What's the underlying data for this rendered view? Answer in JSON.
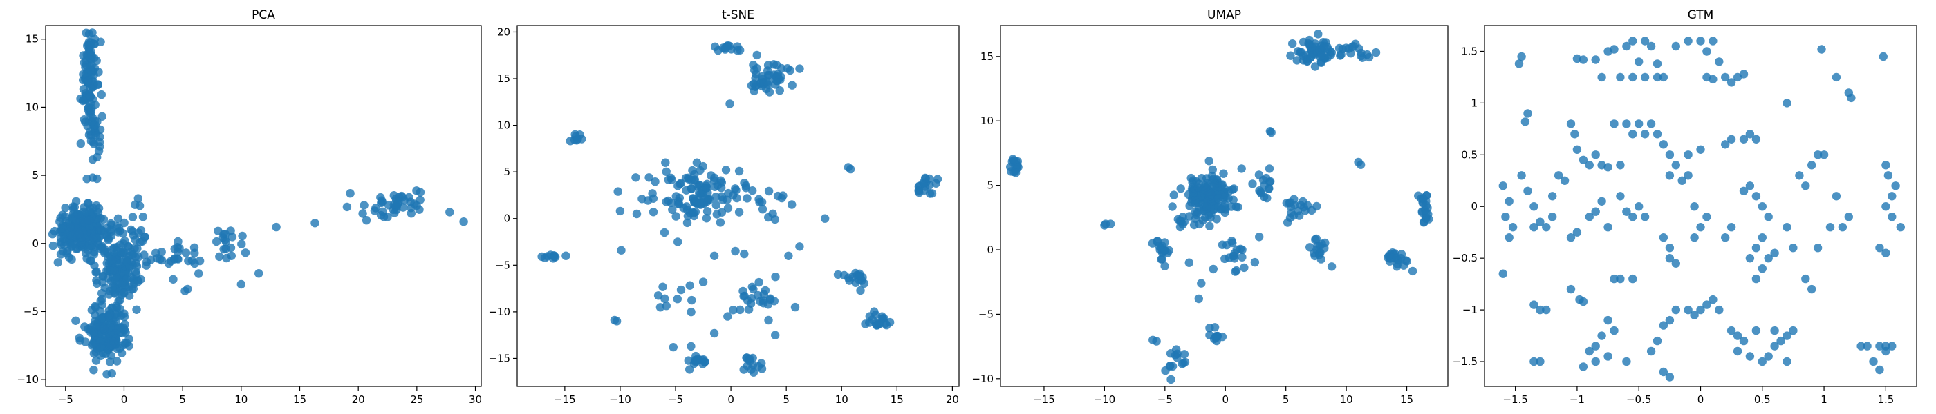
{
  "chart_data": [
    {
      "type": "scatter",
      "title": "PCA",
      "xlim": [
        -6.7,
        30.5
      ],
      "ylim": [
        -10.5,
        16.0
      ],
      "xticks": [
        -5,
        0,
        5,
        10,
        15,
        20,
        25,
        30
      ],
      "yticks": [
        -10,
        -5,
        0,
        5,
        10,
        15
      ],
      "xlabel": "",
      "ylabel": "",
      "grid": false,
      "marker_color": "#1f77b4",
      "clusters": [
        {
          "x": -3.0,
          "y": 12.3,
          "sx": 0.35,
          "sy": 1.8,
          "n": 90
        },
        {
          "x": -2.4,
          "y": 8.2,
          "sx": 0.3,
          "sy": 1.7,
          "n": 35
        },
        {
          "x": -3.5,
          "y": 0.9,
          "sx": 1.1,
          "sy": 0.8,
          "n": 260
        },
        {
          "x": -0.4,
          "y": -2.0,
          "sx": 0.9,
          "sy": 1.3,
          "n": 140
        },
        {
          "x": -1.5,
          "y": -6.6,
          "sx": 0.9,
          "sy": 1.0,
          "n": 170
        },
        {
          "x": 5.0,
          "y": -1.0,
          "sx": 1.6,
          "sy": 0.7,
          "n": 28
        },
        {
          "x": 9.0,
          "y": 0.1,
          "sx": 0.7,
          "sy": 0.8,
          "n": 18
        },
        {
          "x": 23.5,
          "y": 2.9,
          "sx": 1.4,
          "sy": 0.5,
          "n": 40
        },
        {
          "x": 0.8,
          "y": 0.9,
          "sx": 0.6,
          "sy": 1.2,
          "n": 25
        }
      ],
      "points": [
        [
          -2.5,
          15.0
        ],
        [
          -2.0,
          14.8
        ],
        [
          13.0,
          1.2
        ],
        [
          16.3,
          1.5
        ],
        [
          11.5,
          -2.2
        ],
        [
          10.0,
          -3.0
        ],
        [
          29.0,
          1.6
        ],
        [
          27.8,
          2.3
        ],
        [
          20.5,
          2.8
        ],
        [
          20.7,
          1.7
        ],
        [
          -5.5,
          1.6
        ],
        [
          -5.4,
          -0.8
        ],
        [
          -2.6,
          -9.3
        ],
        [
          -1.2,
          -8.7
        ],
        [
          5.2,
          -3.5
        ],
        [
          1.2,
          3.3
        ]
      ]
    },
    {
      "type": "scatter",
      "title": "t-SNE",
      "xlim": [
        -19.3,
        20.6
      ],
      "ylim": [
        -18.0,
        20.7
      ],
      "xticks": [
        -15,
        -10,
        -5,
        0,
        5,
        10,
        15,
        20
      ],
      "yticks": [
        -15,
        -10,
        -5,
        0,
        5,
        10,
        15,
        20
      ],
      "xlabel": "",
      "ylabel": "",
      "grid": false,
      "marker_color": "#1f77b4",
      "clusters": [
        {
          "x": -2.8,
          "y": 2.8,
          "sx": 1.8,
          "sy": 1.4,
          "n": 110
        },
        {
          "x": 3.5,
          "y": 15.0,
          "sx": 1.1,
          "sy": 0.8,
          "n": 45
        },
        {
          "x": 0.0,
          "y": 18.2,
          "sx": 0.7,
          "sy": 0.4,
          "n": 12
        },
        {
          "x": 17.5,
          "y": 3.5,
          "sx": 0.6,
          "sy": 0.5,
          "n": 18
        },
        {
          "x": -16.0,
          "y": -4.0,
          "sx": 0.6,
          "sy": 0.15,
          "n": 10
        },
        {
          "x": -14.0,
          "y": 8.6,
          "sx": 0.3,
          "sy": 0.2,
          "n": 8
        },
        {
          "x": 11.2,
          "y": -6.2,
          "sx": 0.6,
          "sy": 0.5,
          "n": 16
        },
        {
          "x": 13.2,
          "y": -11.0,
          "sx": 0.7,
          "sy": 0.6,
          "n": 18
        },
        {
          "x": 2.0,
          "y": -8.2,
          "sx": 1.0,
          "sy": 0.8,
          "n": 22
        },
        {
          "x": -3.0,
          "y": -15.2,
          "sx": 0.5,
          "sy": 0.4,
          "n": 14
        },
        {
          "x": 1.8,
          "y": -15.5,
          "sx": 0.5,
          "sy": 0.6,
          "n": 14
        },
        {
          "x": -5.0,
          "y": -8.0,
          "sx": 1.0,
          "sy": 1.4,
          "n": 10
        },
        {
          "x": 3.3,
          "y": 1.5,
          "sx": 0.8,
          "sy": 1.3,
          "n": 12
        }
      ],
      "points": [
        [
          10.6,
          5.5
        ],
        [
          10.8,
          5.3
        ],
        [
          -10.2,
          2.9
        ],
        [
          -10.0,
          0.8
        ],
        [
          -9.9,
          -3.4
        ],
        [
          -10.5,
          -10.9
        ],
        [
          -10.3,
          -11.0
        ],
        [
          -8.6,
          4.4
        ],
        [
          -8.5,
          0.5
        ],
        [
          -7.0,
          0.7
        ],
        [
          -5.2,
          -13.8
        ],
        [
          -3.6,
          -13.7
        ],
        [
          -2.5,
          -6.8
        ],
        [
          -0.3,
          -10.5
        ],
        [
          0.2,
          -9.8
        ],
        [
          5.8,
          -9.5
        ],
        [
          6.2,
          -3.0
        ],
        [
          5.2,
          -4.0
        ],
        [
          -1.5,
          -4.0
        ],
        [
          0.4,
          -3.5
        ],
        [
          -6.0,
          -1.5
        ],
        [
          -4.8,
          -2.5
        ],
        [
          -1.5,
          -12.3
        ],
        [
          3.4,
          -10.9
        ],
        [
          -7.4,
          4.4
        ],
        [
          5.5,
          1.5
        ],
        [
          8.5,
          0.0
        ],
        [
          -0.1,
          12.3
        ],
        [
          1.2,
          -3.8
        ],
        [
          4.0,
          -12.5
        ]
      ]
    },
    {
      "type": "scatter",
      "title": "UMAP",
      "xlim": [
        -18.6,
        18.4
      ],
      "ylim": [
        -10.6,
        17.4
      ],
      "xticks": [
        -15,
        -10,
        -5,
        0,
        5,
        10,
        15
      ],
      "yticks": [
        -10,
        -5,
        0,
        5,
        10,
        15
      ],
      "xlabel": "",
      "ylabel": "",
      "grid": false,
      "marker_color": "#1f77b4",
      "clusters": [
        {
          "x": -1.3,
          "y": 4.2,
          "sx": 1.1,
          "sy": 0.9,
          "n": 140
        },
        {
          "x": 7.3,
          "y": 15.4,
          "sx": 0.9,
          "sy": 0.5,
          "n": 55
        },
        {
          "x": 10.2,
          "y": 15.3,
          "sx": 0.8,
          "sy": 0.3,
          "n": 18
        },
        {
          "x": -17.2,
          "y": 6.6,
          "sx": 0.3,
          "sy": 0.4,
          "n": 16
        },
        {
          "x": 16.5,
          "y": 3.0,
          "sx": 0.3,
          "sy": 0.7,
          "n": 22
        },
        {
          "x": 14.2,
          "y": -0.7,
          "sx": 0.4,
          "sy": 0.4,
          "n": 20
        },
        {
          "x": -5.2,
          "y": 0.0,
          "sx": 0.3,
          "sy": 0.6,
          "n": 18
        },
        {
          "x": -4.0,
          "y": -8.6,
          "sx": 0.5,
          "sy": 0.5,
          "n": 14
        },
        {
          "x": 1.0,
          "y": -0.8,
          "sx": 0.8,
          "sy": 0.9,
          "n": 18
        },
        {
          "x": 3.3,
          "y": 4.9,
          "sx": 0.4,
          "sy": 0.8,
          "n": 15
        },
        {
          "x": 7.6,
          "y": 0.2,
          "sx": 0.3,
          "sy": 1.0,
          "n": 16
        },
        {
          "x": 5.5,
          "y": 2.8,
          "sx": 0.4,
          "sy": 0.6,
          "n": 10
        },
        {
          "x": -3.2,
          "y": 2.0,
          "sx": 0.6,
          "sy": 0.5,
          "n": 12
        },
        {
          "x": -0.9,
          "y": -6.6,
          "sx": 0.3,
          "sy": 0.4,
          "n": 10
        },
        {
          "x": 6.5,
          "y": 3.4,
          "sx": 0.5,
          "sy": 0.3,
          "n": 8
        }
      ],
      "points": [
        [
          -9.9,
          2.0
        ],
        [
          -9.5,
          2.0
        ],
        [
          -10.0,
          1.9
        ],
        [
          11.0,
          6.8
        ],
        [
          11.2,
          6.6
        ],
        [
          3.7,
          9.2
        ],
        [
          3.8,
          9.1
        ],
        [
          -2.0,
          -2.6
        ],
        [
          -2.2,
          -3.8
        ],
        [
          -6.0,
          -7.0
        ],
        [
          -5.7,
          -7.1
        ],
        [
          -3.0,
          -1.0
        ],
        [
          2.8,
          1.0
        ],
        [
          -1.0,
          -1.5
        ],
        [
          8.8,
          -1.3
        ]
      ]
    },
    {
      "type": "scatter",
      "title": "GTM",
      "xlim": [
        -1.75,
        1.75
      ],
      "ylim": [
        -1.74,
        1.75
      ],
      "xticks": [
        -1.5,
        -1.0,
        -0.5,
        0.0,
        0.5,
        1.0,
        1.5
      ],
      "yticks": [
        -1.5,
        -1.0,
        -0.5,
        0.0,
        0.5,
        1.0,
        1.5
      ],
      "xlabel": "",
      "ylabel": "",
      "grid": false,
      "marker_color": "#1f77b4",
      "points": [
        [
          -1.45,
          1.45
        ],
        [
          -1.47,
          1.38
        ],
        [
          -1.4,
          0.9
        ],
        [
          -1.42,
          0.82
        ],
        [
          -1.6,
          0.2
        ],
        [
          -1.55,
          0.05
        ],
        [
          -1.52,
          -0.2
        ],
        [
          -1.58,
          -0.1
        ],
        [
          -1.55,
          -0.3
        ],
        [
          -1.6,
          -0.65
        ],
        [
          -1.45,
          0.3
        ],
        [
          -1.4,
          0.15
        ],
        [
          -1.35,
          0.0
        ],
        [
          -1.3,
          -0.15
        ],
        [
          -1.25,
          -0.2
        ],
        [
          -1.35,
          -0.2
        ],
        [
          -1.2,
          0.1
        ],
        [
          -1.15,
          0.3
        ],
        [
          -1.1,
          0.25
        ],
        [
          -1.2,
          -0.1
        ],
        [
          -1.05,
          0.8
        ],
        [
          -1.02,
          0.7
        ],
        [
          -1.0,
          0.55
        ],
        [
          -0.95,
          0.45
        ],
        [
          -0.9,
          0.4
        ],
        [
          -0.85,
          0.5
        ],
        [
          -1.05,
          -0.3
        ],
        [
          -1.0,
          -0.25
        ],
        [
          -1.05,
          -0.8
        ],
        [
          -0.98,
          -0.9
        ],
        [
          -0.95,
          -0.92
        ],
        [
          -1.3,
          -1.0
        ],
        [
          -1.35,
          -0.95
        ],
        [
          -1.25,
          -1.0
        ],
        [
          -1.35,
          -1.5
        ],
        [
          -1.3,
          -1.5
        ],
        [
          -1.0,
          1.43
        ],
        [
          -0.95,
          1.42
        ],
        [
          -0.85,
          1.42
        ],
        [
          -0.8,
          1.25
        ],
        [
          -0.75,
          1.5
        ],
        [
          -0.7,
          1.52
        ],
        [
          -0.65,
          1.25
        ],
        [
          -0.6,
          1.55
        ],
        [
          -0.55,
          1.6
        ],
        [
          -0.5,
          1.4
        ],
        [
          -0.45,
          1.6
        ],
        [
          -0.4,
          1.55
        ],
        [
          -0.35,
          1.38
        ],
        [
          -0.3,
          1.25
        ],
        [
          -0.55,
          1.25
        ],
        [
          -0.45,
          1.25
        ],
        [
          -0.35,
          1.25
        ],
        [
          -0.2,
          1.55
        ],
        [
          -0.1,
          1.6
        ],
        [
          0.0,
          1.6
        ],
        [
          0.05,
          1.5
        ],
        [
          0.1,
          1.6
        ],
        [
          0.15,
          1.4
        ],
        [
          0.2,
          1.25
        ],
        [
          0.25,
          1.2
        ],
        [
          0.3,
          1.25
        ],
        [
          0.35,
          1.28
        ],
        [
          0.05,
          1.25
        ],
        [
          0.1,
          1.23
        ],
        [
          0.7,
          1.0
        ],
        [
          0.98,
          1.52
        ],
        [
          1.1,
          1.25
        ],
        [
          1.2,
          1.1
        ],
        [
          1.22,
          1.05
        ],
        [
          1.48,
          1.45
        ],
        [
          -0.7,
          0.8
        ],
        [
          -0.6,
          0.8
        ],
        [
          -0.55,
          0.7
        ],
        [
          -0.5,
          0.8
        ],
        [
          -0.45,
          0.7
        ],
        [
          -0.4,
          0.8
        ],
        [
          -0.35,
          0.7
        ],
        [
          -0.8,
          0.4
        ],
        [
          -0.75,
          0.38
        ],
        [
          -0.65,
          0.4
        ],
        [
          -0.3,
          0.6
        ],
        [
          -0.25,
          0.5
        ],
        [
          -0.1,
          0.5
        ],
        [
          0.0,
          0.55
        ],
        [
          0.2,
          0.6
        ],
        [
          0.25,
          0.65
        ],
        [
          0.35,
          0.65
        ],
        [
          0.4,
          0.7
        ],
        [
          0.45,
          0.65
        ],
        [
          -0.2,
          0.4
        ],
        [
          -0.25,
          0.3
        ],
        [
          -0.15,
          0.25
        ],
        [
          -0.1,
          0.3
        ],
        [
          -0.65,
          0.1
        ],
        [
          -0.6,
          -0.05
        ],
        [
          -0.55,
          -0.1
        ],
        [
          -0.5,
          0.0
        ],
        [
          -0.45,
          -0.1
        ],
        [
          -0.8,
          0.05
        ],
        [
          -0.85,
          -0.05
        ],
        [
          -0.9,
          -0.1
        ],
        [
          -0.75,
          -0.2
        ],
        [
          -0.3,
          -0.3
        ],
        [
          -0.25,
          -0.4
        ],
        [
          -0.2,
          -0.55
        ],
        [
          -0.25,
          -0.5
        ],
        [
          -0.05,
          -0.3
        ],
        [
          0.0,
          -0.2
        ],
        [
          0.05,
          -0.1
        ],
        [
          -0.05,
          0.0
        ],
        [
          -0.7,
          -0.7
        ],
        [
          -0.65,
          -0.7
        ],
        [
          -0.55,
          -0.7
        ],
        [
          -0.75,
          -1.1
        ],
        [
          -0.7,
          -1.2
        ],
        [
          -0.8,
          -1.25
        ],
        [
          -0.85,
          -1.35
        ],
        [
          -0.9,
          -1.4
        ],
        [
          -0.95,
          -1.55
        ],
        [
          -0.85,
          -1.5
        ],
        [
          -0.75,
          -1.45
        ],
        [
          -0.6,
          -1.5
        ],
        [
          -0.3,
          -1.6
        ],
        [
          -0.25,
          -1.65
        ],
        [
          -0.4,
          -1.4
        ],
        [
          -0.35,
          -1.3
        ],
        [
          -0.3,
          -1.15
        ],
        [
          -0.25,
          -1.1
        ],
        [
          -0.2,
          -1.0
        ],
        [
          -0.1,
          -1.0
        ],
        [
          -0.05,
          -1.05
        ],
        [
          0.0,
          -1.0
        ],
        [
          0.05,
          -0.95
        ],
        [
          0.1,
          -0.9
        ],
        [
          0.15,
          -1.0
        ],
        [
          0.25,
          -1.2
        ],
        [
          0.3,
          -1.25
        ],
        [
          0.35,
          -1.3
        ],
        [
          0.3,
          -1.4
        ],
        [
          0.4,
          -1.45
        ],
        [
          0.5,
          -1.5
        ],
        [
          0.55,
          -1.45
        ],
        [
          0.6,
          -1.35
        ],
        [
          0.65,
          -1.3
        ],
        [
          0.7,
          -1.25
        ],
        [
          0.75,
          -1.2
        ],
        [
          0.6,
          -1.2
        ],
        [
          0.7,
          -1.5
        ],
        [
          0.45,
          -1.2
        ],
        [
          0.4,
          -0.5
        ],
        [
          0.45,
          -0.4
        ],
        [
          0.5,
          -0.3
        ],
        [
          0.55,
          -0.1
        ],
        [
          0.5,
          0.0
        ],
        [
          0.45,
          0.1
        ],
        [
          0.4,
          0.2
        ],
        [
          0.35,
          0.15
        ],
        [
          0.45,
          -0.7
        ],
        [
          0.5,
          -0.6
        ],
        [
          0.55,
          -0.5
        ],
        [
          0.6,
          -0.45
        ],
        [
          0.2,
          -0.3
        ],
        [
          0.25,
          -0.2
        ],
        [
          0.8,
          0.3
        ],
        [
          0.85,
          0.2
        ],
        [
          0.9,
          0.4
        ],
        [
          0.95,
          0.5
        ],
        [
          1.0,
          0.5
        ],
        [
          1.1,
          0.1
        ],
        [
          1.05,
          -0.2
        ],
        [
          0.95,
          -0.4
        ],
        [
          0.75,
          -0.4
        ],
        [
          0.7,
          -0.2
        ],
        [
          1.3,
          -1.35
        ],
        [
          1.35,
          -1.35
        ],
        [
          1.45,
          -1.35
        ],
        [
          1.5,
          -1.35
        ],
        [
          1.45,
          -1.58
        ],
        [
          1.4,
          -1.5
        ],
        [
          1.5,
          -1.4
        ],
        [
          1.55,
          -1.35
        ],
        [
          1.45,
          -0.4
        ],
        [
          1.5,
          -0.45
        ],
        [
          1.5,
          0.4
        ],
        [
          1.52,
          0.3
        ],
        [
          1.55,
          0.1
        ],
        [
          1.5,
          0.0
        ],
        [
          1.55,
          -0.1
        ],
        [
          1.62,
          -0.2
        ],
        [
          1.58,
          0.2
        ],
        [
          1.15,
          -0.2
        ],
        [
          1.2,
          -0.1
        ],
        [
          0.85,
          -0.7
        ],
        [
          0.9,
          -0.8
        ]
      ]
    }
  ]
}
